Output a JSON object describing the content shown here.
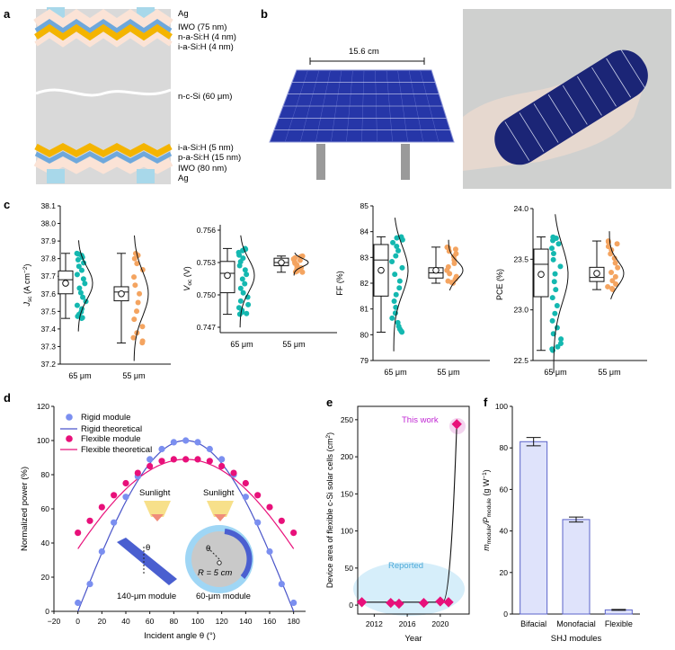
{
  "panel_labels": {
    "a": "a",
    "b": "b",
    "c": "c",
    "d": "d",
    "e": "e",
    "f": "f"
  },
  "panel_a": {
    "layers_top": [
      "Ag",
      "IWO (75 nm)",
      "n-a-Si:H (4 nm)",
      "i-a-Si:H (4 nm)"
    ],
    "layer_middle": "n-c-Si (60 μm)",
    "layers_bottom": [
      "i-a-Si:H (5 nm)",
      "p-a-Si:H (15 nm)",
      "IWO (80 nm)",
      "Ag"
    ],
    "colors": {
      "ag": "#a8d8ea",
      "iwo": "#fbe3d6",
      "a_si_n": "#6fa8dc",
      "a_si_i": "#f4b400",
      "si": "#d9d9d9"
    }
  },
  "panel_b": {
    "dimension_label": "15.6 cm",
    "photo_description_colors": {
      "cell": "#1f2a8a",
      "background": "#d0d0d0",
      "hand": "#e8d9d0"
    }
  },
  "panel_c": {
    "x_categories": [
      "65 μm",
      "55 μm"
    ],
    "colors": {
      "65um": "#14b8b0",
      "55um": "#f4a460"
    },
    "subplots": [
      {
        "ylabel": "Jsc (A cm−2)",
        "ylabel_main": "J",
        "ylabel_sub": "sc",
        "ylabel_unit": " (A cm",
        "ylabel_sup": "−2",
        "ylabel_close": ")",
        "ylim": [
          37.2,
          38.1
        ],
        "yticks": [
          "37.2",
          "37.3",
          "37.4",
          "37.5",
          "37.6",
          "37.7",
          "37.8",
          "37.9",
          "38.0",
          "38.1"
        ],
        "box65": {
          "min": 37.46,
          "q1": 37.6,
          "median": 37.68,
          "q3": 37.73,
          "max": 37.83,
          "mean": 37.66
        },
        "box55": {
          "min": 37.32,
          "q1": 37.56,
          "median": 37.61,
          "q3": 37.64,
          "max": 37.83,
          "mean": 37.6
        }
      },
      {
        "ylabel": "Voc (V)",
        "ylabel_main": "V",
        "ylabel_sub": "oc",
        "ylabel_unit": " (V)",
        "ylim": [
          0.7465,
          0.7565
        ],
        "yticks": [
          "0.747",
          "0.750",
          "0.753",
          "0.756"
        ],
        "box65": {
          "min": 0.7482,
          "q1": 0.7502,
          "median": 0.752,
          "q3": 0.7531,
          "max": 0.7543,
          "mean": 0.7518
        },
        "box55": {
          "min": 0.7521,
          "q1": 0.7527,
          "median": 0.753,
          "q3": 0.7534,
          "max": 0.7536,
          "mean": 0.753
        }
      },
      {
        "ylabel": "FF (%)",
        "ylim": [
          79,
          85
        ],
        "yticks": [
          "79",
          "80",
          "81",
          "82",
          "83",
          "84",
          "85"
        ],
        "box65": {
          "min": 80.1,
          "q1": 81.5,
          "median": 82.9,
          "q3": 83.5,
          "max": 83.8,
          "mean": 82.5
        },
        "box55": {
          "min": 82.0,
          "q1": 82.2,
          "median": 82.4,
          "q3": 82.6,
          "max": 83.4,
          "mean": 82.5
        }
      },
      {
        "ylabel": "PCE (%)",
        "ylim": [
          22.5,
          24.0
        ],
        "yticks": [
          "22.5",
          "23.0",
          "23.5",
          "24.0"
        ],
        "box65": {
          "min": 22.6,
          "q1": 23.13,
          "median": 23.45,
          "q3": 23.6,
          "max": 23.72,
          "mean": 23.35
        },
        "box55": {
          "min": 23.2,
          "q1": 23.28,
          "median": 23.32,
          "q3": 23.42,
          "max": 23.68,
          "mean": 23.36
        }
      }
    ]
  },
  "chart_data": [
    {
      "type": "scatter",
      "xlabel": "Incident angle θ (°)",
      "ylabel": "Normalized power (%)",
      "xlim": [
        -20,
        190
      ],
      "ylim": [
        0,
        120
      ],
      "xticks": [
        "−20",
        "0",
        "20",
        "40",
        "60",
        "80",
        "100",
        "120",
        "140",
        "160",
        "180"
      ],
      "yticks": [
        "0",
        "20",
        "40",
        "60",
        "80",
        "100",
        "120"
      ],
      "series": [
        {
          "name": "Rigid module",
          "color": "#7b8ff0",
          "x": [
            0,
            10,
            20,
            30,
            40,
            50,
            60,
            70,
            80,
            90,
            100,
            110,
            120,
            130,
            140,
            150,
            160,
            170,
            180
          ],
          "y": [
            5,
            16,
            35,
            52,
            67,
            79,
            89,
            95,
            99,
            100,
            99,
            95,
            89,
            80,
            67,
            52,
            35,
            16,
            5
          ]
        },
        {
          "name": "Flexible module",
          "color": "#e8107a",
          "x": [
            0,
            10,
            20,
            30,
            40,
            50,
            60,
            70,
            80,
            90,
            100,
            110,
            120,
            130,
            140,
            150,
            160,
            170,
            180
          ],
          "y": [
            46,
            53,
            61,
            68,
            75,
            81,
            85,
            88,
            89,
            89,
            89,
            88,
            85,
            81,
            75,
            68,
            61,
            53,
            46
          ]
        }
      ],
      "legend": [
        "Rigid module",
        "Rigid theoretical",
        "Flexible module",
        "Flexible theoretical"
      ],
      "annotations": {
        "sunlight_1": "Sunlight",
        "sunlight_2": "Sunlight",
        "module_140": "140-μm module",
        "module_60": "60-μm module",
        "theta": "θ",
        "radius": "R = 5 cm"
      }
    },
    {
      "type": "scatter",
      "xlabel": "Year",
      "ylabel": "Device area of flexible c-Si solar cells (cm2)",
      "ylabel_main": "Device area of flexible c-Si solar cells (cm",
      "ylabel_sup": "2",
      "ylabel_close": ")",
      "xlim": [
        2010,
        2023.5
      ],
      "ylim": [
        -12,
        268
      ],
      "xticks": [
        "2012",
        "2016",
        "2020"
      ],
      "yticks": [
        "0",
        "50",
        "100",
        "150",
        "200",
        "250"
      ],
      "series": [
        {
          "name": "Reported",
          "x": [
            2010.5,
            2014,
            2015,
            2018,
            2020,
            2021
          ],
          "y": [
            4,
            3,
            2,
            3,
            5,
            4
          ],
          "color": "#e8107a"
        },
        {
          "name": "This work",
          "x": [
            2022
          ],
          "y": [
            244
          ],
          "color": "#e8107a"
        }
      ],
      "annotations": {
        "this_work": "This work",
        "reported": "Reported"
      }
    },
    {
      "type": "bar",
      "categories": [
        "Bifacial",
        "Monofacial",
        "Flexible"
      ],
      "values": [
        83,
        45.5,
        2
      ],
      "errors": [
        2,
        1.2,
        0.2
      ],
      "xlabel": "SHJ modules",
      "ylabel": "mmodule/Pmodule (g W−1)",
      "ylabel_parts": [
        "m",
        "module",
        "/P",
        "module",
        " (g W",
        "−1",
        ")"
      ],
      "ylim": [
        0,
        100
      ],
      "yticks": [
        "0",
        "20",
        "40",
        "60",
        "80",
        "100"
      ],
      "bar_color": "#dfe3fb",
      "bar_edge": "#5b63c9"
    }
  ]
}
